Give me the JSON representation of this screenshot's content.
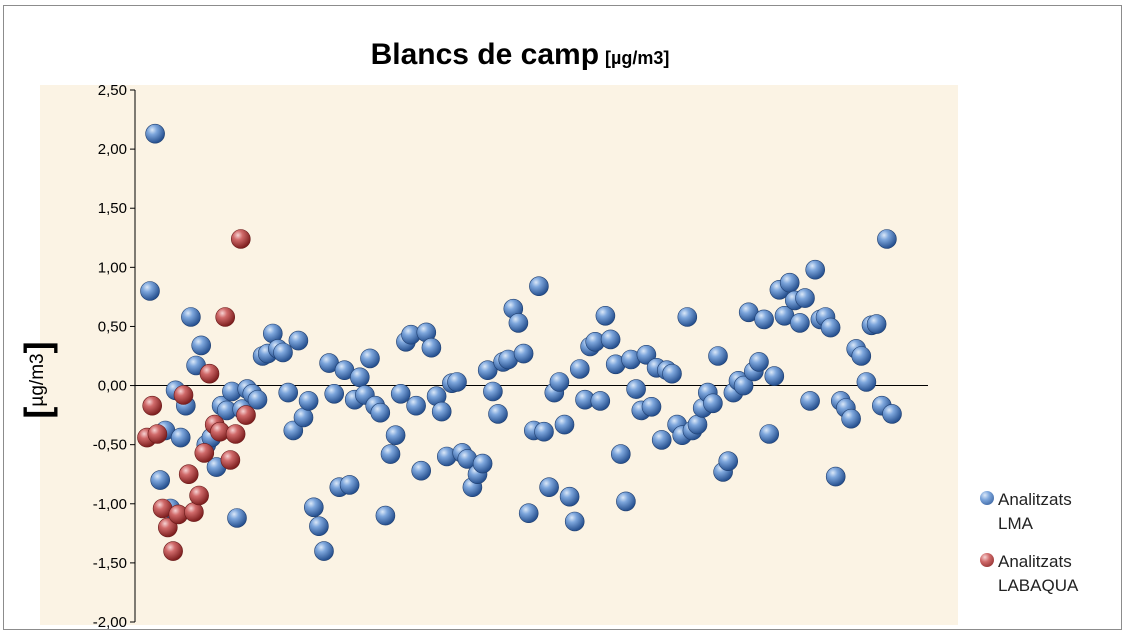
{
  "chart_data": {
    "type": "scatter",
    "title": "Blancs de camp",
    "title_unit": "[µg/m3]",
    "ylabel": "µg/m3",
    "ylim": [
      -2,
      2.5
    ],
    "yticks": [
      "2,50",
      "2,00",
      "1,50",
      "1,00",
      "0,50",
      "0,00",
      "-0,50",
      "-1,00",
      "-1,50",
      "-2,00"
    ],
    "ytick_values": [
      2.5,
      2.0,
      1.5,
      1.0,
      0.5,
      0.0,
      -0.5,
      -1.0,
      -1.5,
      -2.0
    ],
    "x_axis_labels": false,
    "gridlines": false,
    "zero_line": true,
    "legend_position": "bottom-right",
    "series": [
      {
        "name": "Analitzats LMA",
        "color": "#4a7ab8",
        "points": [
          [
            1,
            0.8
          ],
          [
            2,
            2.13
          ],
          [
            3,
            -0.8
          ],
          [
            4,
            -0.38
          ],
          [
            5,
            -1.04
          ],
          [
            6,
            -0.04
          ],
          [
            7,
            -0.44
          ],
          [
            8,
            -0.17
          ],
          [
            9,
            0.58
          ],
          [
            10,
            0.17
          ],
          [
            11,
            0.34
          ],
          [
            12,
            -0.5
          ],
          [
            13,
            -0.44
          ],
          [
            14,
            -0.69
          ],
          [
            15,
            -0.17
          ],
          [
            16,
            -0.21
          ],
          [
            17,
            -0.05
          ],
          [
            18,
            -1.12
          ],
          [
            19,
            -0.2
          ],
          [
            20,
            -0.03
          ],
          [
            21,
            -0.07
          ],
          [
            22,
            -0.12
          ],
          [
            23,
            0.25
          ],
          [
            24,
            0.27
          ],
          [
            25,
            0.44
          ],
          [
            26,
            0.31
          ],
          [
            27,
            0.28
          ],
          [
            28,
            -0.06
          ],
          [
            29,
            -0.38
          ],
          [
            30,
            0.38
          ],
          [
            31,
            -0.27
          ],
          [
            32,
            -0.13
          ],
          [
            33,
            -1.03
          ],
          [
            34,
            -1.19
          ],
          [
            35,
            -1.4
          ],
          [
            36,
            0.19
          ],
          [
            37,
            -0.07
          ],
          [
            38,
            -0.86
          ],
          [
            39,
            0.13
          ],
          [
            40,
            -0.84
          ],
          [
            41,
            -0.12
          ],
          [
            42,
            0.07
          ],
          [
            43,
            -0.08
          ],
          [
            44,
            0.23
          ],
          [
            45,
            -0.17
          ],
          [
            46,
            -0.23
          ],
          [
            47,
            -1.1
          ],
          [
            48,
            -0.58
          ],
          [
            49,
            -0.42
          ],
          [
            50,
            -0.07
          ],
          [
            51,
            0.37
          ],
          [
            52,
            0.43
          ],
          [
            53,
            -0.17
          ],
          [
            54,
            -0.72
          ],
          [
            55,
            0.45
          ],
          [
            56,
            0.32
          ],
          [
            57,
            -0.09
          ],
          [
            58,
            -0.22
          ],
          [
            59,
            -0.6
          ],
          [
            60,
            0.02
          ],
          [
            61,
            0.03
          ],
          [
            62,
            -0.57
          ],
          [
            63,
            -0.62
          ],
          [
            64,
            -0.86
          ],
          [
            65,
            -0.75
          ],
          [
            66,
            -0.66
          ],
          [
            67,
            0.13
          ],
          [
            68,
            -0.05
          ],
          [
            69,
            -0.24
          ],
          [
            70,
            0.2
          ],
          [
            71,
            0.22
          ],
          [
            72,
            0.65
          ],
          [
            73,
            0.53
          ],
          [
            74,
            0.27
          ],
          [
            75,
            -1.08
          ],
          [
            76,
            -0.38
          ],
          [
            77,
            0.84
          ],
          [
            78,
            -0.39
          ],
          [
            79,
            -0.86
          ],
          [
            80,
            -0.06
          ],
          [
            81,
            0.03
          ],
          [
            82,
            -0.33
          ],
          [
            83,
            -0.94
          ],
          [
            84,
            -1.15
          ],
          [
            85,
            0.14
          ],
          [
            86,
            -0.12
          ],
          [
            87,
            0.33
          ],
          [
            88,
            0.37
          ],
          [
            89,
            -0.13
          ],
          [
            90,
            0.59
          ],
          [
            91,
            0.39
          ],
          [
            92,
            0.18
          ],
          [
            93,
            -0.58
          ],
          [
            94,
            -0.98
          ],
          [
            95,
            0.22
          ],
          [
            96,
            -0.03
          ],
          [
            97,
            -0.21
          ],
          [
            98,
            0.26
          ],
          [
            99,
            -0.18
          ],
          [
            100,
            0.15
          ],
          [
            101,
            -0.46
          ],
          [
            102,
            0.13
          ],
          [
            103,
            0.1
          ],
          [
            104,
            -0.33
          ],
          [
            105,
            -0.42
          ],
          [
            106,
            0.58
          ],
          [
            107,
            -0.38
          ],
          [
            108,
            -0.33
          ],
          [
            109,
            -0.19
          ],
          [
            110,
            -0.06
          ],
          [
            111,
            -0.15
          ],
          [
            112,
            0.25
          ],
          [
            113,
            -0.73
          ],
          [
            114,
            -0.64
          ],
          [
            115,
            -0.06
          ],
          [
            116,
            0.04
          ],
          [
            117,
            0.0
          ],
          [
            118,
            0.62
          ],
          [
            119,
            0.12
          ],
          [
            120,
            0.2
          ],
          [
            121,
            0.56
          ],
          [
            122,
            -0.41
          ],
          [
            123,
            0.08
          ],
          [
            124,
            0.81
          ],
          [
            125,
            0.59
          ],
          [
            126,
            0.87
          ],
          [
            127,
            0.72
          ],
          [
            128,
            0.53
          ],
          [
            129,
            0.74
          ],
          [
            130,
            -0.13
          ],
          [
            131,
            0.98
          ],
          [
            132,
            0.56
          ],
          [
            133,
            0.58
          ],
          [
            134,
            0.49
          ],
          [
            135,
            -0.77
          ],
          [
            136,
            -0.13
          ],
          [
            137,
            -0.19
          ],
          [
            138,
            -0.28
          ],
          [
            139,
            0.31
          ],
          [
            140,
            0.25
          ],
          [
            141,
            0.03
          ],
          [
            142,
            0.51
          ],
          [
            143,
            0.52
          ],
          [
            144,
            -0.17
          ],
          [
            145,
            1.24
          ],
          [
            146,
            -0.24
          ]
        ]
      },
      {
        "name": "Analitzats LABAQUA",
        "color": "#b03a3a",
        "points": [
          [
            1,
            -0.44
          ],
          [
            2,
            -0.17
          ],
          [
            3,
            -0.41
          ],
          [
            4,
            -1.04
          ],
          [
            5,
            -1.2
          ],
          [
            6,
            -1.4
          ],
          [
            7,
            -1.09
          ],
          [
            8,
            -0.08
          ],
          [
            9,
            -0.75
          ],
          [
            10,
            -1.07
          ],
          [
            11,
            -0.93
          ],
          [
            12,
            -0.57
          ],
          [
            13,
            0.1
          ],
          [
            14,
            -0.33
          ],
          [
            15,
            -0.39
          ],
          [
            16,
            0.58
          ],
          [
            17,
            -0.63
          ],
          [
            18,
            -0.41
          ],
          [
            19,
            1.24
          ],
          [
            20,
            -0.25
          ]
        ]
      }
    ]
  }
}
